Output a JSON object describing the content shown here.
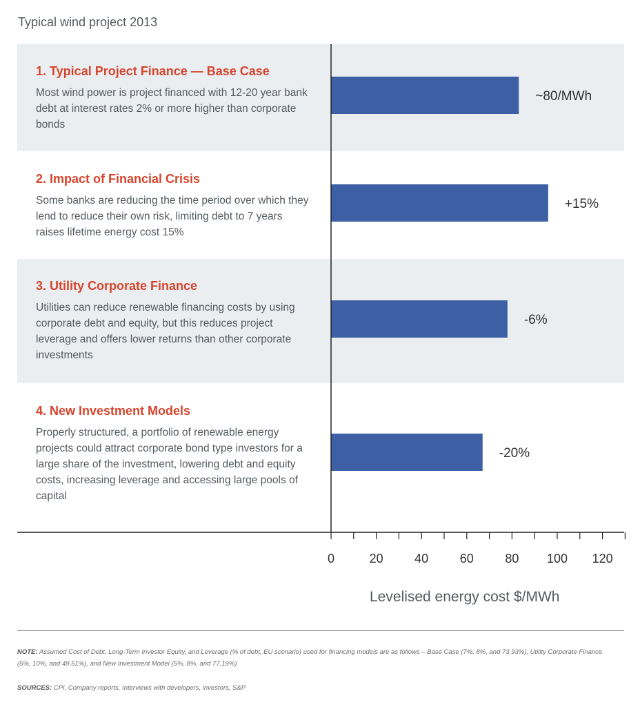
{
  "header": {
    "title": "Typical wind project 2013"
  },
  "rows": [
    {
      "title": "1. Typical Project Finance — Base Case",
      "description": "Most wind power is project financed with 12-20 year bank debt at interest rates 2% or more higher than corporate bonds"
    },
    {
      "title": "2. Impact of Financial Crisis",
      "description": "Some banks are reducing the time period over which they lend to reduce their own risk, limiting debt to 7 years raises lifetime energy cost 15%"
    },
    {
      "title": "3. Utility Corporate Finance",
      "description": "Utilities can reduce renewable financing costs by using corporate debt and equity, but this reduces project leverage and offers lower returns than other corporate investments"
    },
    {
      "title": "4. New Investment Models",
      "description": "Properly structured, a portfolio of renewable energy projects could attract corporate bond type investors for a large share of the investment, lowering debt and equity costs, increasing leverage and accessing large pools of capital"
    }
  ],
  "chart_data": {
    "type": "bar",
    "orientation": "horizontal",
    "title": "Typical wind project 2013",
    "categories": [
      "1. Typical Project Finance — Base Case",
      "2. Impact of Financial Crisis",
      "3. Utility Corporate Finance",
      "4. New Investment Models"
    ],
    "values": [
      83,
      96,
      78,
      67
    ],
    "data_labels": [
      "~80/MWh",
      "+15%",
      "-6%",
      "-20%"
    ],
    "xlabel": "Levelised energy cost $/MWh",
    "xlim": [
      0,
      130
    ],
    "xticks": [
      0,
      20,
      40,
      60,
      80,
      100,
      120
    ],
    "bar_color": "#3c60a3",
    "grid": false,
    "legend": "none"
  },
  "notes": {
    "note_label": "NOTE:",
    "note_text": "Assumed Cost of Debt, Long-Term Investor Equity, and Leverage (% of debt, EU scenario) used for financing models are as follows – Base Case (7%, 8%, and 73.93%), Utility Corporate Finance (5%, 10%, and 49.51%), and New Investment Model (5%, 8%, and 77.19%)",
    "sources_label": "SOURCES:",
    "sources_text": "CPI, Company reports, Interviews with developers, investors, S&P"
  },
  "colors": {
    "accent_title": "#d5452d",
    "band_shade": "#eaeef1",
    "bar": "#3c60a3"
  }
}
